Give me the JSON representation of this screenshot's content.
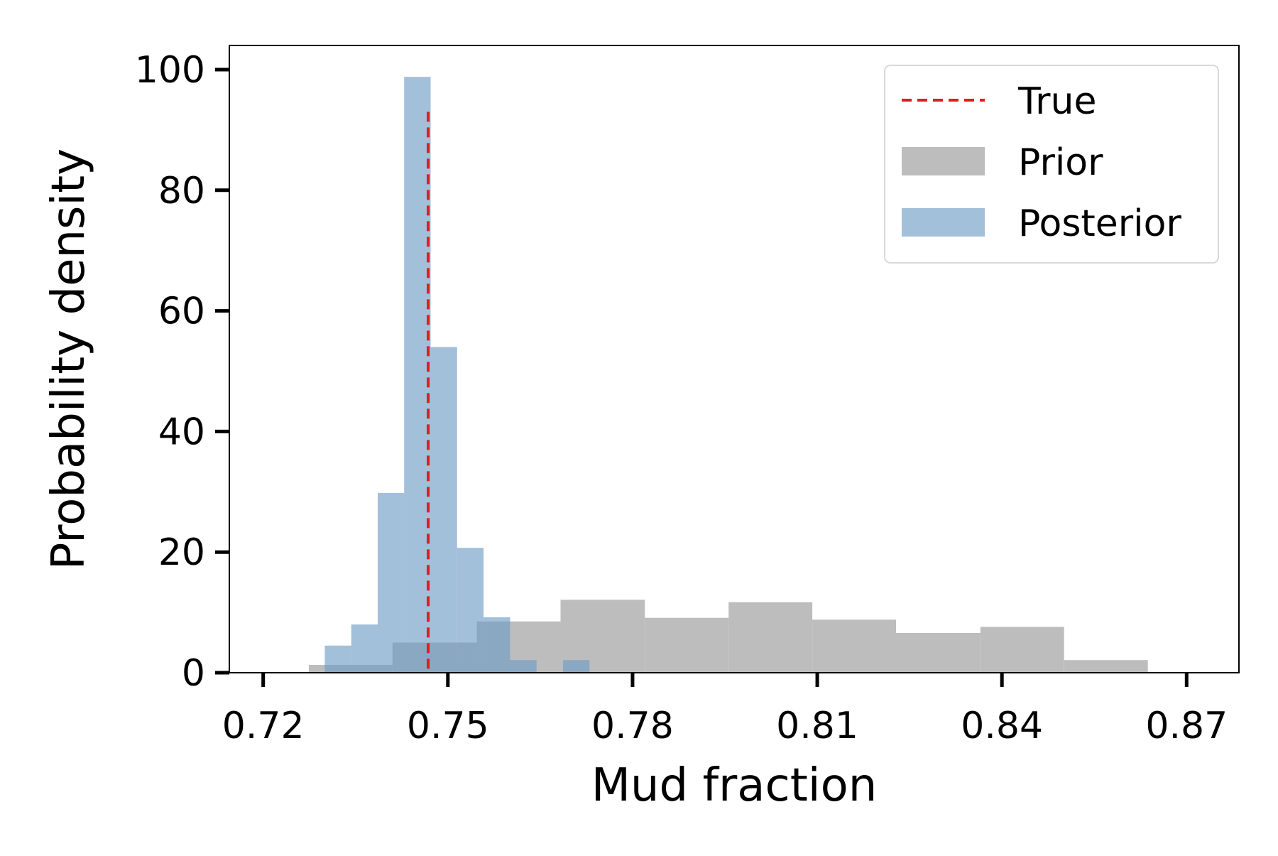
{
  "chart_data": {
    "type": "histogram",
    "title": "",
    "xlabel": "Mud fraction",
    "ylabel": "Probability density",
    "xlim": [
      0.7145,
      0.8785
    ],
    "ylim": [
      0,
      104
    ],
    "xticks": [
      "0.72",
      "0.75",
      "0.78",
      "0.81",
      "0.84",
      "0.87"
    ],
    "xtick_values": [
      0.72,
      0.75,
      0.78,
      0.81,
      0.84,
      0.87
    ],
    "yticks": [
      "0",
      "20",
      "40",
      "60",
      "80",
      "100"
    ],
    "ytick_values": [
      0,
      20,
      40,
      60,
      80,
      100
    ],
    "grid": false,
    "legend_position": "top-right",
    "legend": [
      "True",
      "Prior",
      "Posterior"
    ],
    "true_value": 0.7468,
    "true_line_top": 93,
    "series": [
      {
        "name": "Prior",
        "color": "#bdbdbd",
        "bins": [
          {
            "x0": 0.7274,
            "x1": 0.741,
            "y": 1.3
          },
          {
            "x0": 0.741,
            "x1": 0.7547,
            "y": 5.0
          },
          {
            "x0": 0.7547,
            "x1": 0.7683,
            "y": 8.5
          },
          {
            "x0": 0.7683,
            "x1": 0.782,
            "y": 12.1
          },
          {
            "x0": 0.782,
            "x1": 0.7956,
            "y": 9.1
          },
          {
            "x0": 0.7956,
            "x1": 0.8092,
            "y": 11.7
          },
          {
            "x0": 0.8092,
            "x1": 0.8228,
            "y": 8.8
          },
          {
            "x0": 0.8228,
            "x1": 0.8365,
            "y": 6.6
          },
          {
            "x0": 0.8365,
            "x1": 0.8501,
            "y": 7.6
          },
          {
            "x0": 0.8501,
            "x1": 0.8637,
            "y": 2.1
          }
        ]
      },
      {
        "name": "Posterior",
        "color": "#6e9bc5",
        "bins": [
          {
            "x0": 0.73,
            "x1": 0.7343,
            "y": 4.5
          },
          {
            "x0": 0.7343,
            "x1": 0.7386,
            "y": 8.0
          },
          {
            "x0": 0.7386,
            "x1": 0.7429,
            "y": 29.8
          },
          {
            "x0": 0.7429,
            "x1": 0.7472,
            "y": 98.8
          },
          {
            "x0": 0.7472,
            "x1": 0.7515,
            "y": 54.0
          },
          {
            "x0": 0.7515,
            "x1": 0.7558,
            "y": 20.7
          },
          {
            "x0": 0.7558,
            "x1": 0.7601,
            "y": 9.2
          },
          {
            "x0": 0.7601,
            "x1": 0.7644,
            "y": 2.1
          },
          {
            "x0": 0.7644,
            "x1": 0.7687,
            "y": 0.0
          },
          {
            "x0": 0.7687,
            "x1": 0.773,
            "y": 2.1
          }
        ]
      }
    ]
  }
}
